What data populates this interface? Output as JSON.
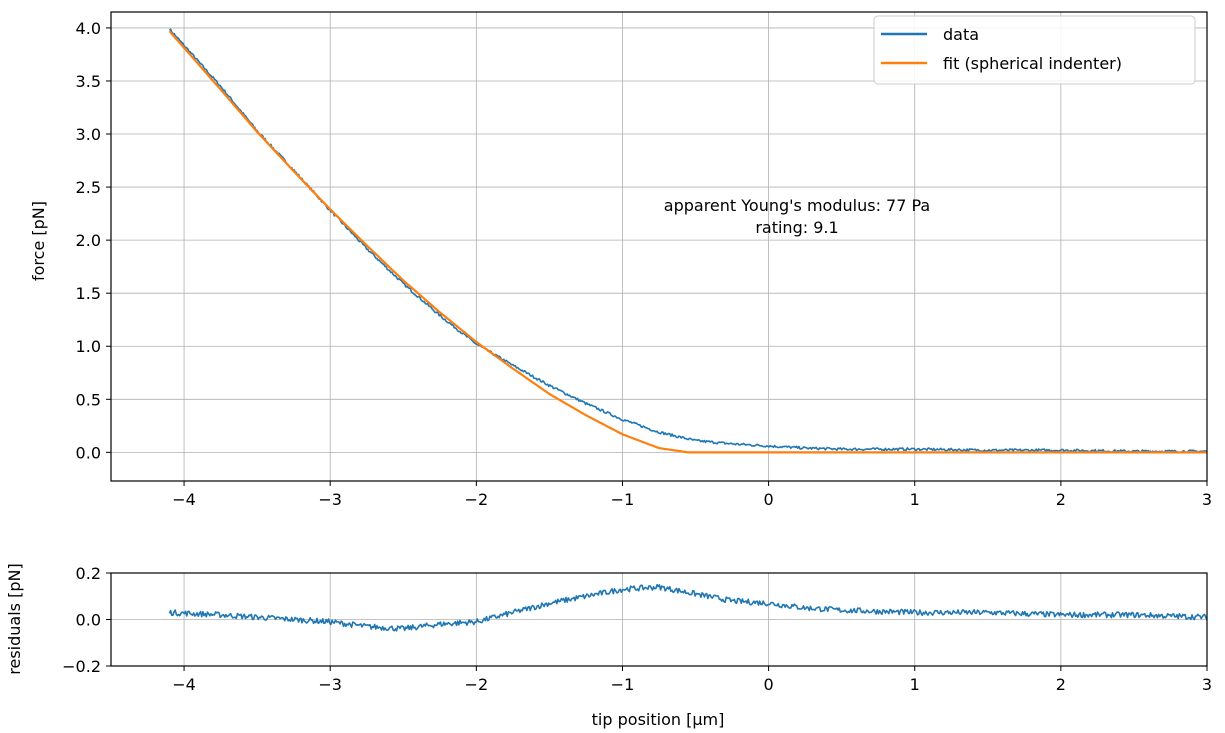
{
  "chart_data": [
    {
      "type": "line",
      "xlim": [
        -4.5,
        3
      ],
      "ylim": [
        -0.27,
        4.15
      ],
      "ylabel": "force [pN]",
      "xticks": [
        -4,
        -3,
        -2,
        -1,
        0,
        1,
        2,
        3
      ],
      "xtick_labels": [
        "−4",
        "−3",
        "−2",
        "−1",
        "0",
        "1",
        "2",
        "3"
      ],
      "yticks": [
        0.0,
        0.5,
        1.0,
        1.5,
        2.0,
        2.5,
        3.0,
        3.5,
        4.0
      ],
      "ytick_labels": [
        "0.0",
        "0.5",
        "1.0",
        "1.5",
        "2.0",
        "2.5",
        "3.0",
        "3.5",
        "4.0"
      ],
      "grid": true,
      "legend_position": "top-right",
      "annotation": [
        "apparent Young's modulus: 77 Pa",
        "rating: 9.1"
      ],
      "series": [
        {
          "name": "data",
          "color": "#1f77b4",
          "x": [
            -4.1,
            -3.75,
            -3.5,
            -3.25,
            -3.0,
            -2.75,
            -2.5,
            -2.25,
            -2.0,
            -1.75,
            -1.5,
            -1.25,
            -1.0,
            -0.75,
            -0.5,
            -0.25,
            0.0,
            0.25,
            0.5,
            1.0,
            1.5,
            2.0,
            2.5,
            3.0
          ],
          "y": [
            3.99,
            3.45,
            3.03,
            2.66,
            2.28,
            1.92,
            1.59,
            1.29,
            1.02,
            0.82,
            0.63,
            0.46,
            0.31,
            0.19,
            0.11,
            0.08,
            0.06,
            0.04,
            0.03,
            0.03,
            0.02,
            0.02,
            0.01,
            0.01
          ]
        },
        {
          "name": "fit (spherical indenter)",
          "color": "#ff7f0e",
          "x": [
            -4.1,
            -3.75,
            -3.5,
            -3.25,
            -3.0,
            -2.75,
            -2.5,
            -2.25,
            -2.0,
            -1.75,
            -1.5,
            -1.25,
            -1.0,
            -0.75,
            -0.55,
            0.0,
            1.0,
            2.0,
            3.0
          ],
          "y": [
            3.97,
            3.42,
            3.02,
            2.65,
            2.29,
            1.95,
            1.62,
            1.32,
            1.04,
            0.79,
            0.55,
            0.35,
            0.17,
            0.04,
            0.0,
            0.0,
            0.0,
            0.0,
            0.0
          ]
        }
      ]
    },
    {
      "type": "line",
      "xlim": [
        -4.5,
        3
      ],
      "ylim": [
        -0.2,
        0.2
      ],
      "xlabel": "tip position [µm]",
      "ylabel": "residuals [pN]",
      "xticks": [
        -4,
        -3,
        -2,
        -1,
        0,
        1,
        2,
        3
      ],
      "xtick_labels": [
        "−4",
        "−3",
        "−2",
        "−1",
        "0",
        "1",
        "2",
        "3"
      ],
      "yticks": [
        -0.2,
        0.0,
        0.2
      ],
      "ytick_labels": [
        "−0.2",
        "0.0",
        "0.2"
      ],
      "grid": true,
      "series": [
        {
          "color": "#1f77b4",
          "x": [
            -4.1,
            -3.75,
            -3.5,
            -3.25,
            -3.0,
            -2.75,
            -2.5,
            -2.25,
            -2.0,
            -1.75,
            -1.5,
            -1.25,
            -1.0,
            -0.75,
            -0.5,
            -0.25,
            0.0,
            0.25,
            0.5,
            1.0,
            1.5,
            2.0,
            2.5,
            3.0
          ],
          "y": [
            0.03,
            0.02,
            0.01,
            0.0,
            -0.01,
            -0.03,
            -0.04,
            -0.02,
            -0.01,
            0.03,
            0.07,
            0.1,
            0.13,
            0.14,
            0.11,
            0.08,
            0.07,
            0.05,
            0.04,
            0.03,
            0.03,
            0.02,
            0.02,
            0.01
          ]
        }
      ]
    }
  ]
}
